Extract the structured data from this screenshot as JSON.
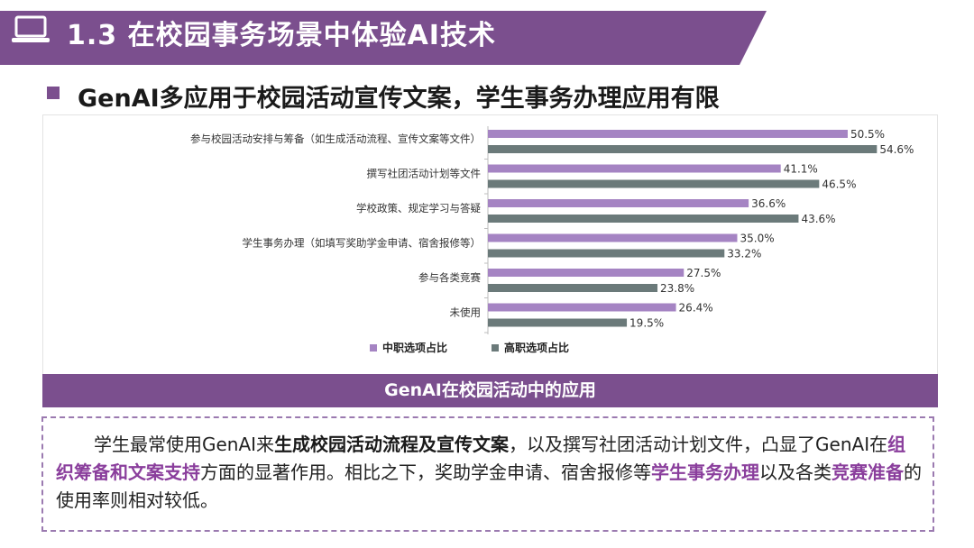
{
  "banner": {
    "title": "1.3 在校园事务场景中体验AI技术",
    "deco_text": ""
  },
  "subtitle": "GenAI多应用于校园活动宣传文案，学生事务办理应用有限",
  "caption": "GenAI在校园活动中的应用",
  "colors": {
    "purple": "#7b4f8e",
    "series_mid": "#a584c3",
    "series_high": "#6b7a7a"
  },
  "chart_data": {
    "type": "bar",
    "orientation": "horizontal",
    "categories": [
      "参与校园活动安排与筹备（如生成活动流程、宣传文案等文件）",
      "撰写社团活动计划等文件",
      "学校政策、规定学习与答疑",
      "学生事务办理（如填写奖助学金申请、宿舍报修等）",
      "参与各类竞赛",
      "未使用"
    ],
    "series": [
      {
        "name": "中职选项占比",
        "values": [
          50.5,
          41.1,
          36.6,
          35.0,
          27.5,
          26.4
        ],
        "labels": [
          "50.5%",
          "41.1%",
          "36.6%",
          "35.0%",
          "27.5%",
          "26.4%"
        ]
      },
      {
        "name": "高职选项占比",
        "values": [
          54.6,
          46.5,
          43.6,
          33.2,
          23.8,
          19.5
        ],
        "labels": [
          "54.6%",
          "46.5%",
          "43.6%",
          "33.2%",
          "23.8%",
          "19.5%"
        ]
      }
    ],
    "xlim": [
      0,
      60
    ],
    "legend_position": "bottom",
    "grid": false
  },
  "paragraph": {
    "p1": "学生最常使用GenAI来",
    "h1": "生成校园活动流程及宣传文案",
    "p2": "，以及撰写社团活动计划文件，凸显了GenAI在",
    "h2": "组织筹备和文案支持",
    "p3": "方面的显著作用。相比之下，奖助学金申请、宿舍报修等",
    "h3": "学生事务办理",
    "p4": "以及各类",
    "h4": "竞赛准备",
    "p5": "的使用率则相对较低。"
  }
}
